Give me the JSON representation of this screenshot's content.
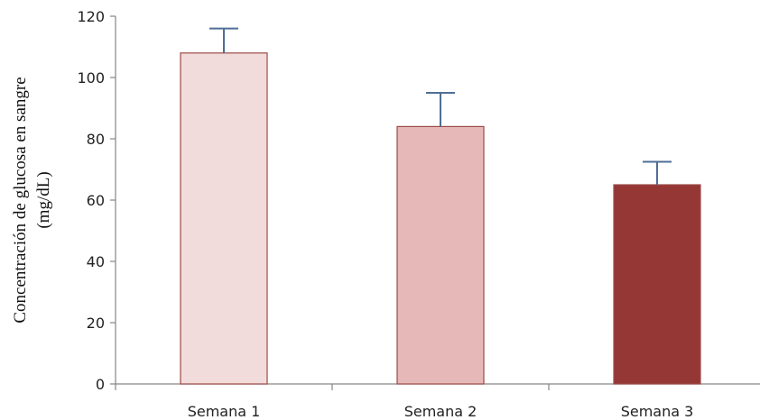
{
  "chart_data": {
    "type": "bar",
    "categories": [
      "Semana 1",
      "Semana 2",
      "Semana 3"
    ],
    "values": [
      108,
      84,
      65
    ],
    "error_upper": [
      116,
      95,
      72.5
    ],
    "ylabel_line1": "Concentración de glucosa en sangre",
    "ylabel_line2": "(mg/dL)",
    "ylim": [
      0,
      120
    ],
    "yticks": [
      "0",
      "20",
      "40",
      "60",
      "80",
      "100",
      "120"
    ],
    "grid": false,
    "legend": "none",
    "colors": {
      "bar_fill": [
        "#f2dcdb",
        "#e6b9b8",
        "#953735"
      ],
      "bar_stroke": "#9b4a48",
      "error_bar": "#4f6e96",
      "axis": "#868686"
    }
  }
}
